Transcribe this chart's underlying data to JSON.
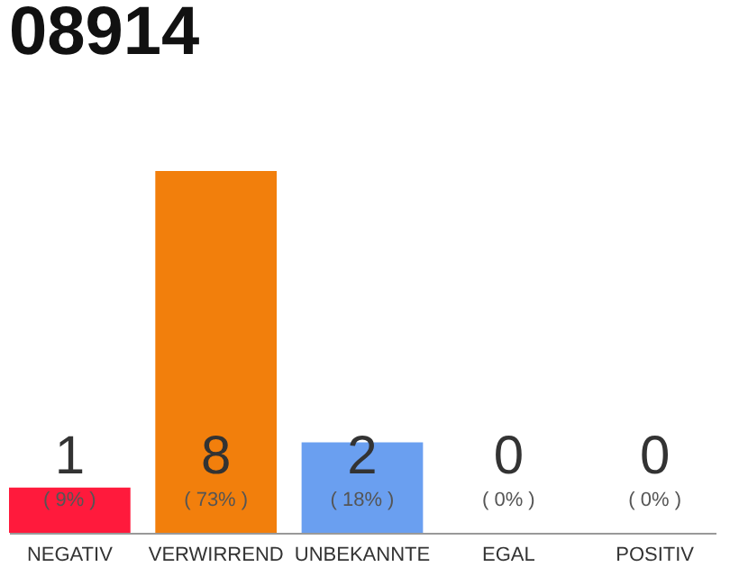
{
  "chart_data": {
    "type": "bar",
    "title": "08914",
    "categories": [
      "NEGATIV",
      "VERWIRREND",
      "UNBEKANNTE",
      "EGAL",
      "POSITIV"
    ],
    "values": [
      1,
      8,
      2,
      0,
      0
    ],
    "colors": [
      "#ff1a3c",
      "#f27f0c",
      "#6a9ff0",
      "#aaaaaa",
      "#aaaaaa"
    ],
    "value_labels": [
      "1",
      "8",
      "2",
      "0",
      "0"
    ],
    "annotations": [
      "( 9% )",
      "( 73% )",
      "( 18% )",
      "( 0% )",
      "( 0% )"
    ],
    "grid": false
  }
}
